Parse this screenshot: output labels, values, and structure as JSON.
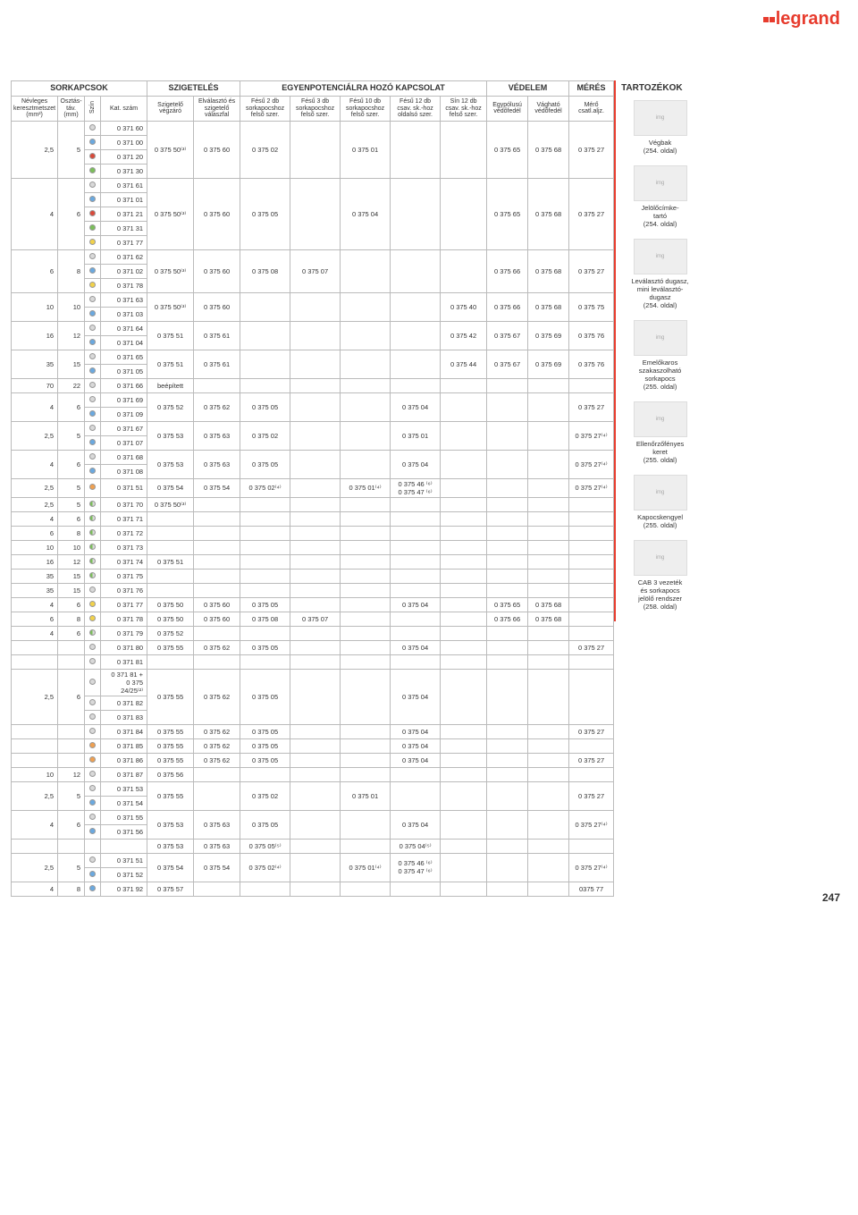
{
  "logo_text": "legrand",
  "page_number": "247",
  "sections": {
    "sorkapcsok": "SORKAPCSOK",
    "szigeteles": "SZIGETELÉS",
    "egyenpot": "EGYENPOTENCIÁLRA HOZÓ KAPCSOLAT",
    "vedelem": "VÉDELEM",
    "meres": "MÉRÉS",
    "tartozekok": "TARTOZÉKOK"
  },
  "headers": {
    "keresztmetszet": "Névleges keresztmetszet (mm²)",
    "osztastav": "Osztás- táv. (mm)",
    "szin": "Szín",
    "katszam": "Kat. szám",
    "vegzaro": "Szigetelő végzáró",
    "valaszfal": "Elválasztó és szigetelő válaszfal",
    "fesu2": "Fésű 2 db sorkapocshoz felső szer.",
    "fesu3": "Fésű 3 db sorkapocshoz felső szer.",
    "fesu10": "Fésű 10 db sorkapocshoz felső szer.",
    "fesu12": "Fésű 12 db csav. sk.-hoz oldalsó szer.",
    "sin12": "Sín 12 db csav. sk.-hoz felső szer.",
    "egypolu": "Egypólusú védőfedél",
    "vaghato": "Vágható védőfedél",
    "merocs": "Mérő csatl.aljz."
  },
  "side_items": [
    {
      "label": "Végbak",
      "page": "(254. oldal)"
    },
    {
      "label": "Jelölőcímke-\ntartó",
      "page": "(254. oldal)"
    },
    {
      "label": "Leválasztó dugasz,\nmini leválasztó-\ndugasz",
      "page": "(254. oldal)"
    },
    {
      "label": "Emelőkaros\nszakaszolható\nsorkapocs",
      "page": "(255. oldal)"
    },
    {
      "label": "Ellenőrzőfényes\nkeret",
      "page": "(255. oldal)"
    },
    {
      "label": "Kapocskengyel",
      "page": "(255. oldal)"
    },
    {
      "label": "CAB 3 vezeték\nés sorkapocs\njelölő rendszer",
      "page": "(258. oldal)"
    }
  ],
  "rows": [
    {
      "km": "2,5",
      "ot": "5",
      "color": [
        "gy",
        "bl",
        "rd",
        "gr"
      ],
      "kat": [
        "0 371 60",
        "0 371 00",
        "0 371 20",
        "0 371 30"
      ],
      "veg": "0 375 50⁽³⁾",
      "vf": "0 375 60",
      "f2": "0 375 02",
      "f3": "",
      "f10": "0 375 01",
      "f12": "",
      "s12": "",
      "ep": "0 375 65",
      "vh": "0 375 68",
      "mc": "0 375 27"
    },
    {
      "km": "4",
      "ot": "6",
      "color": [
        "gy",
        "bl",
        "rd",
        "gr",
        "ye"
      ],
      "kat": [
        "0 371 61",
        "0 371 01",
        "0 371 21",
        "0 371 31",
        "0 371 77"
      ],
      "veg": "0 375 50⁽³⁾",
      "vf": "0 375 60",
      "f2": "0 375 05",
      "f3": "",
      "f10": "0 375 04",
      "f12": "",
      "s12": "",
      "ep": "0 375 65",
      "vh": "0 375 68",
      "mc": "0 375 27"
    },
    {
      "km": "6",
      "ot": "8",
      "color": [
        "gy",
        "bl",
        "ye"
      ],
      "kat": [
        "0 371 62",
        "0 371 02",
        "0 371 78"
      ],
      "veg": "0 375 50⁽³⁾",
      "vf": "0 375 60",
      "f2": "0 375 08",
      "f3": "0 375 07",
      "f10": "",
      "f12": "",
      "s12": "",
      "ep": "0 375 66",
      "vh": "0 375 68",
      "mc": "0 375 27"
    },
    {
      "km": "10",
      "ot": "10",
      "color": [
        "gy",
        "bl"
      ],
      "kat": [
        "0 371 63",
        "0 371 03"
      ],
      "veg": "0 375 50⁽³⁾",
      "vf": "0 375 60",
      "f2": "",
      "f3": "",
      "f10": "",
      "f12": "",
      "s12": "0 375 40",
      "ep": "0 375 66",
      "vh": "0 375 68",
      "mc": "0 375 75"
    },
    {
      "km": "16",
      "ot": "12",
      "color": [
        "gy",
        "bl"
      ],
      "kat": [
        "0 371 64",
        "0 371 04"
      ],
      "veg": "0 375 51",
      "vf": "0 375 61",
      "f2": "",
      "f3": "",
      "f10": "",
      "f12": "",
      "s12": "0 375 42",
      "ep": "0 375 67",
      "vh": "0 375 69",
      "mc": "0 375 76"
    },
    {
      "km": "35",
      "ot": "15",
      "color": [
        "gy",
        "bl"
      ],
      "kat": [
        "0 371 65",
        "0 371 05"
      ],
      "veg": "0 375 51",
      "vf": "0 375 61",
      "f2": "",
      "f3": "",
      "f10": "",
      "f12": "",
      "s12": "0 375 44",
      "ep": "0 375 67",
      "vh": "0 375 69",
      "mc": "0 375 76"
    },
    {
      "km": "70",
      "ot": "22",
      "color": [
        "gy"
      ],
      "kat": [
        "0 371 66"
      ],
      "veg": "beépített",
      "vf": "",
      "f2": "",
      "f3": "",
      "f10": "",
      "f12": "",
      "s12": "",
      "ep": "",
      "vh": "",
      "mc": ""
    },
    {
      "km": "4",
      "ot": "6",
      "color": [
        "gy",
        "bl"
      ],
      "kat": [
        "0 371 69",
        "0 371 09"
      ],
      "veg": "0 375 52",
      "vf": "0 375 62",
      "f2": "0 375 05",
      "f3": "",
      "f10": "",
      "f12": "0 375 04",
      "s12": "",
      "ep": "",
      "vh": "",
      "mc": "0 375 27"
    },
    {
      "km": "2,5",
      "ot": "5",
      "color": [
        "gy",
        "bl"
      ],
      "kat": [
        "0 371 67",
        "0 371 07"
      ],
      "veg": "0 375 53",
      "vf": "0 375 63",
      "f2": "0 375 02",
      "f3": "",
      "f10": "",
      "f12": "0 375 01",
      "s12": "",
      "ep": "",
      "vh": "",
      "mc": "0 375 27⁽⁴⁾"
    },
    {
      "km": "4",
      "ot": "6",
      "color": [
        "gy",
        "bl"
      ],
      "kat": [
        "0 371 68",
        "0 371 08"
      ],
      "veg": "0 375 53",
      "vf": "0 375 63",
      "f2": "0 375 05",
      "f3": "",
      "f10": "",
      "f12": "0 375 04",
      "s12": "",
      "ep": "",
      "vh": "",
      "mc": "0 375 27⁽⁴⁾"
    },
    {
      "km": "2,5",
      "ot": "5",
      "color": [
        "or"
      ],
      "kat": [
        "0 371 51"
      ],
      "veg": "0 375 54",
      "vf": "0 375 54",
      "f2": "0 375 02⁽⁴⁾",
      "f3": "",
      "f10": "0 375 01⁽⁴⁾",
      "f12": "0 375 46 ⁽⁶⁾\n0 375 47 ⁽⁶⁾",
      "s12": "",
      "ep": "",
      "vh": "",
      "mc": "0 375 27⁽⁴⁾"
    },
    {
      "km": "2,5",
      "ot": "5",
      "color": [
        "hb"
      ],
      "kat": [
        "0 371 70"
      ],
      "veg": "0 375 50⁽³⁾",
      "vf": "",
      "f2": "",
      "f3": "",
      "f10": "",
      "f12": "",
      "s12": "",
      "ep": "",
      "vh": "",
      "mc": ""
    },
    {
      "km": "4",
      "ot": "6",
      "color": [
        "hb"
      ],
      "kat": [
        "0 371 71"
      ],
      "veg": "",
      "vf": "",
      "f2": "",
      "f3": "",
      "f10": "",
      "f12": "",
      "s12": "",
      "ep": "",
      "vh": "",
      "mc": ""
    },
    {
      "km": "6",
      "ot": "8",
      "color": [
        "hb"
      ],
      "kat": [
        "0 371 72"
      ],
      "veg": "",
      "vf": "",
      "f2": "",
      "f3": "",
      "f10": "",
      "f12": "",
      "s12": "",
      "ep": "",
      "vh": "",
      "mc": ""
    },
    {
      "km": "10",
      "ot": "10",
      "color": [
        "hb"
      ],
      "kat": [
        "0 371 73"
      ],
      "veg": "",
      "vf": "",
      "f2": "",
      "f3": "",
      "f10": "",
      "f12": "",
      "s12": "",
      "ep": "",
      "vh": "",
      "mc": ""
    },
    {
      "km": "16",
      "ot": "12",
      "color": [
        "hb"
      ],
      "kat": [
        "0 371 74"
      ],
      "veg": "0 375 51",
      "vf": "",
      "f2": "",
      "f3": "",
      "f10": "",
      "f12": "",
      "s12": "",
      "ep": "",
      "vh": "",
      "mc": ""
    },
    {
      "km": "35",
      "ot": "15",
      "color": [
        "hb"
      ],
      "kat": [
        "0 371 75"
      ],
      "veg": "",
      "vf": "",
      "f2": "",
      "f3": "",
      "f10": "",
      "f12": "",
      "s12": "",
      "ep": "",
      "vh": "",
      "mc": ""
    },
    {
      "km": "35",
      "ot": "15",
      "color": [
        "gy"
      ],
      "kat": [
        "0 371 76"
      ],
      "veg": "",
      "vf": "",
      "f2": "",
      "f3": "",
      "f10": "",
      "f12": "",
      "s12": "",
      "ep": "",
      "vh": "",
      "mc": ""
    },
    {
      "km": "4",
      "ot": "6",
      "color": [
        "ye"
      ],
      "kat": [
        "0 371 77"
      ],
      "veg": "0 375 50",
      "vf": "0 375 60",
      "f2": "0 375 05",
      "f3": "",
      "f10": "",
      "f12": "0 375 04",
      "s12": "",
      "ep": "0 375 65",
      "vh": "0 375 68",
      "mc": ""
    },
    {
      "km": "6",
      "ot": "8",
      "color": [
        "ye"
      ],
      "kat": [
        "0 371 78"
      ],
      "veg": "0 375 50",
      "vf": "0 375 60",
      "f2": "0 375 08",
      "f3": "0 375 07",
      "f10": "",
      "f12": "",
      "s12": "",
      "ep": "0 375 66",
      "vh": "0 375 68",
      "mc": ""
    },
    {
      "km": "4",
      "ot": "6",
      "color": [
        "hb"
      ],
      "kat": [
        "0 371 79"
      ],
      "veg": "0 375 52",
      "vf": "",
      "f2": "",
      "f3": "",
      "f10": "",
      "f12": "",
      "s12": "",
      "ep": "",
      "vh": "",
      "mc": ""
    },
    {
      "km": "",
      "ot": "",
      "color": [
        "gy"
      ],
      "kat": [
        "0 371 80"
      ],
      "veg": "0 375 55",
      "vf": "0 375 62",
      "f2": "0 375 05",
      "f3": "",
      "f10": "",
      "f12": "0 375 04",
      "s12": "",
      "ep": "",
      "vh": "",
      "mc": "0 375 27"
    },
    {
      "km": "",
      "ot": "",
      "color": [
        "gy"
      ],
      "kat": [
        "0 371 81"
      ],
      "veg": "",
      "vf": "",
      "f2": "",
      "f3": "",
      "f10": "",
      "f12": "",
      "s12": "",
      "ep": "",
      "vh": "",
      "mc": ""
    },
    {
      "km": "2,5",
      "ot": "6",
      "color": [
        "gy",
        "gy",
        "gy"
      ],
      "kat": [
        "0 371 81 +\n0 375\n24/25⁽²⁾",
        "0 371 82",
        "0 371 83"
      ],
      "veg": "0 375 55",
      "vf": "0 375 62",
      "f2": "0 375 05",
      "f3": "",
      "f10": "",
      "f12": "0 375 04",
      "s12": "",
      "ep": "",
      "vh": "",
      "mc": ""
    },
    {
      "km": "",
      "ot": "",
      "color": [
        "gy"
      ],
      "kat": [
        "0 371 84"
      ],
      "veg": "0 375 55",
      "vf": "0 375 62",
      "f2": "0 375 05",
      "f3": "",
      "f10": "",
      "f12": "0 375 04",
      "s12": "",
      "ep": "",
      "vh": "",
      "mc": "0 375 27"
    },
    {
      "km": "",
      "ot": "",
      "color": [
        "or"
      ],
      "kat": [
        "0 371 85"
      ],
      "veg": "0 375 55",
      "vf": "0 375 62",
      "f2": "0 375 05",
      "f3": "",
      "f10": "",
      "f12": "0 375 04",
      "s12": "",
      "ep": "",
      "vh": "",
      "mc": ""
    },
    {
      "km": "",
      "ot": "",
      "color": [
        "or"
      ],
      "kat": [
        "0 371 86"
      ],
      "veg": "0 375 55",
      "vf": "0 375 62",
      "f2": "0 375 05",
      "f3": "",
      "f10": "",
      "f12": "0 375 04",
      "s12": "",
      "ep": "",
      "vh": "",
      "mc": "0 375 27"
    },
    {
      "km": "10",
      "ot": "12",
      "color": [
        "gy"
      ],
      "kat": [
        "0 371 87"
      ],
      "veg": "0 375 56",
      "vf": "",
      "f2": "",
      "f3": "",
      "f10": "",
      "f12": "",
      "s12": "",
      "ep": "",
      "vh": "",
      "mc": ""
    },
    {
      "km": "2,5",
      "ot": "5",
      "color": [
        "gy",
        "bl"
      ],
      "kat": [
        "0 371 53",
        "0 371 54"
      ],
      "veg": "0 375 55",
      "vf": "",
      "f2": "0 375 02",
      "f3": "",
      "f10": "0 375 01",
      "f12": "",
      "s12": "",
      "ep": "",
      "vh": "",
      "mc": "0 375 27"
    },
    {
      "km": "4",
      "ot": "6",
      "color": [
        "gy",
        "bl"
      ],
      "kat": [
        "0 371 55",
        "0 371 56"
      ],
      "veg": "0 375 53",
      "vf": "0 375 63",
      "f2": "0 375 05",
      "f3": "",
      "f10": "",
      "f12": "0 375 04",
      "s12": "",
      "ep": "",
      "vh": "",
      "mc": "0 375 27⁽⁴⁾"
    },
    {
      "km": "",
      "ot": "",
      "color": [],
      "kat": [
        ""
      ],
      "veg": "0 375 53",
      "vf": "0 375 63",
      "f2": "0 375 05⁽⁵⁾",
      "f3": "",
      "f10": "",
      "f12": "0 375 04⁽⁵⁾",
      "s12": "",
      "ep": "",
      "vh": "",
      "mc": ""
    },
    {
      "km": "2,5",
      "ot": "5",
      "color": [
        "gy",
        "bl"
      ],
      "kat": [
        "0 371 51",
        "0 371 52"
      ],
      "veg": "0 375 54",
      "vf": "0 375 54",
      "f2": "0 375 02⁽⁴⁾",
      "f3": "",
      "f10": "0 375 01⁽⁴⁾",
      "f12": "0 375 46 ⁽⁶⁾\n0 375 47 ⁽⁶⁾",
      "s12": "",
      "ep": "",
      "vh": "",
      "mc": "0 375 27⁽⁴⁾"
    },
    {
      "km": "4",
      "ot": "8",
      "color": [
        "bl"
      ],
      "kat": [
        "0 371 92"
      ],
      "veg": "0 375 57",
      "vf": "",
      "f2": "",
      "f3": "",
      "f10": "",
      "f12": "",
      "s12": "",
      "ep": "",
      "vh": "",
      "mc": "0375 77"
    }
  ],
  "col_widths": {
    "km": 42,
    "ot": 30,
    "szin": 18,
    "kat": 52,
    "veg": 52,
    "vf": 52,
    "f2": 56,
    "f3": 56,
    "f10": 56,
    "f12": 56,
    "s12": 52,
    "ep": 46,
    "vh": 46,
    "mc": 50
  },
  "colors": {
    "brand": "#e73b2d",
    "border": "#bbb",
    "text": "#333"
  }
}
